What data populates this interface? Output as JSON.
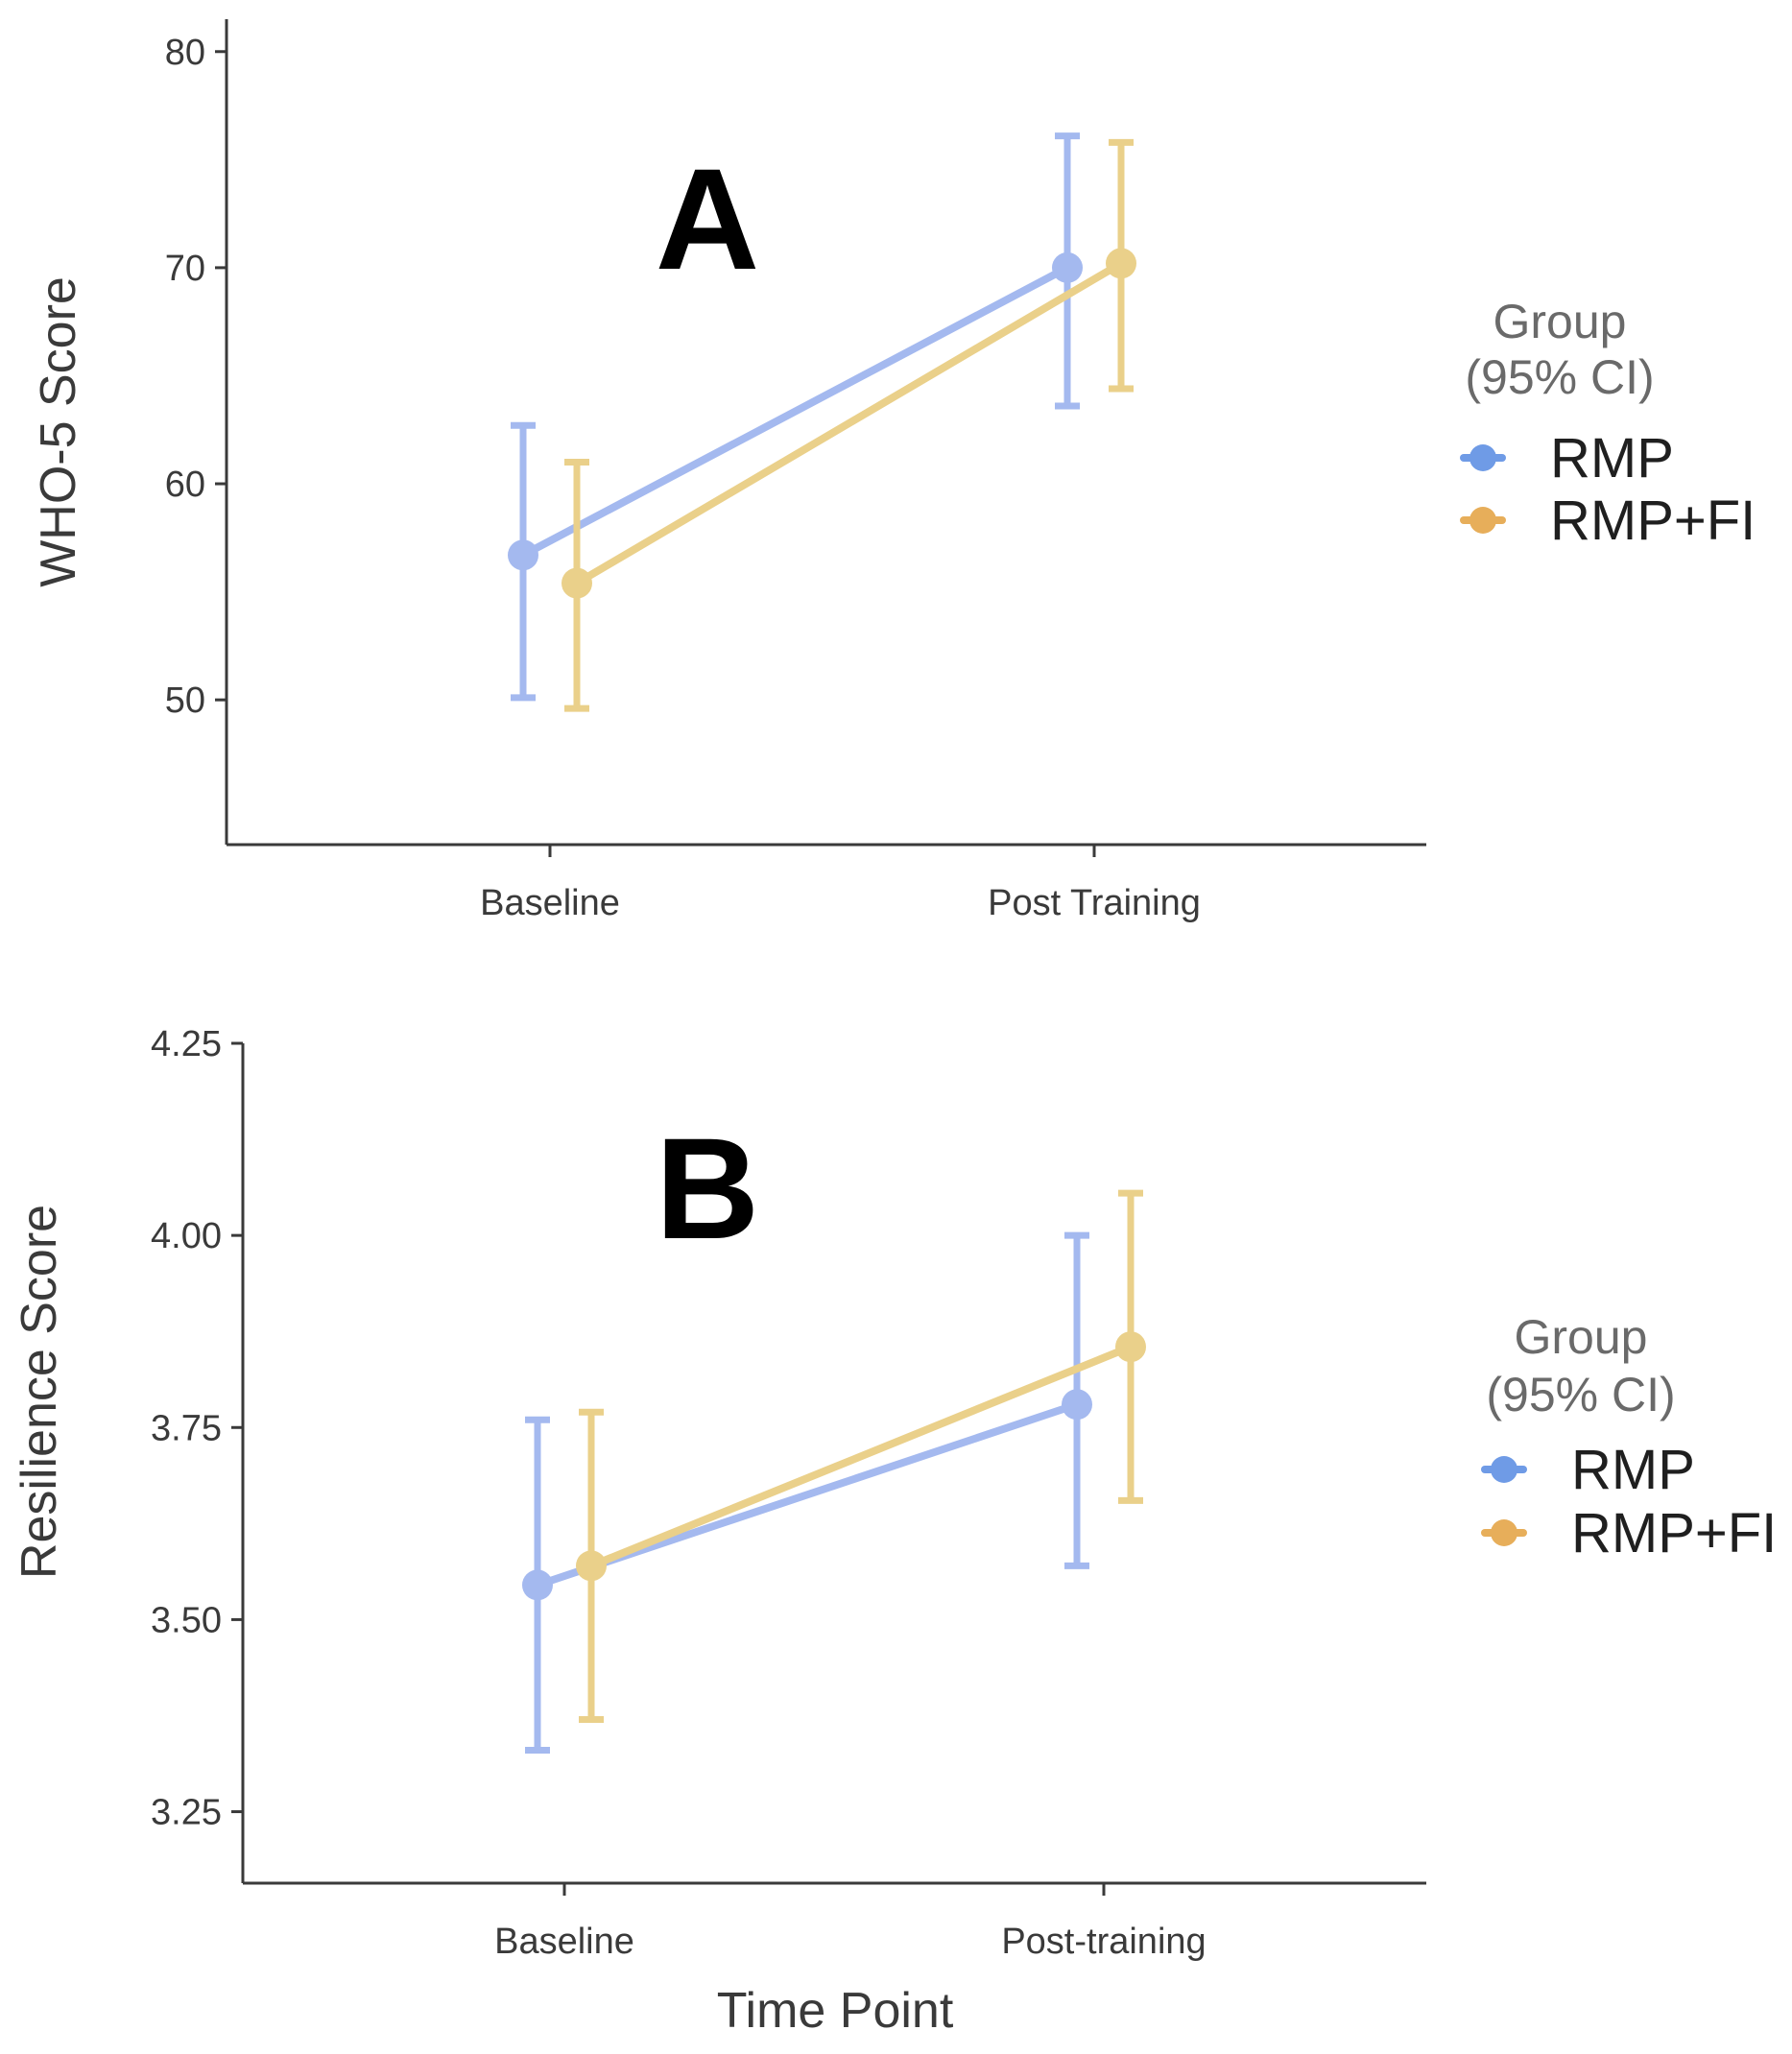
{
  "colors": {
    "rmp": "#a4b9ef",
    "rmp_fi": "#ead08a",
    "rmp_legend": "#6f9be6",
    "rmp_fi_legend": "#e7ae5a",
    "axis": "#3a3a3a"
  },
  "chart_data": [
    {
      "type": "line",
      "panel_label": "A",
      "title": "",
      "xlabel": "",
      "ylabel": "WHO-5 Score",
      "categories": [
        "Baseline",
        "Post Training"
      ],
      "ylim": [
        43.3,
        81.5
      ],
      "yticks": [
        "80",
        "70",
        "60",
        "50"
      ],
      "ytick_values": [
        80,
        70,
        60,
        50
      ],
      "legend_title": [
        "Group",
        "(95% CI)"
      ],
      "series": [
        {
          "name": "RMP",
          "values": [
            56.7,
            70.0
          ],
          "ci_low": [
            50.1,
            63.6
          ],
          "ci_high": [
            62.7,
            76.1
          ]
        },
        {
          "name": "RMP+FI",
          "values": [
            55.4,
            70.2
          ],
          "ci_low": [
            49.6,
            64.4
          ],
          "ci_high": [
            61.0,
            75.8
          ]
        }
      ]
    },
    {
      "type": "line",
      "panel_label": "B",
      "title": "",
      "xlabel": "Time Point",
      "ylabel": "Resilience Score",
      "categories": [
        "Baseline",
        "Post-training"
      ],
      "ylim": [
        3.157,
        4.25
      ],
      "yticks": [
        "4.25",
        "4.00",
        "3.75",
        "3.50",
        "3.25"
      ],
      "ytick_values": [
        4.25,
        4.0,
        3.75,
        3.5,
        3.25
      ],
      "legend_title": [
        "Group",
        "(95% CI)"
      ],
      "series": [
        {
          "name": "RMP",
          "values": [
            3.545,
            3.78
          ],
          "ci_low": [
            3.33,
            3.57
          ],
          "ci_high": [
            3.76,
            4.0
          ]
        },
        {
          "name": "RMP+FI",
          "values": [
            3.57,
            3.855
          ],
          "ci_low": [
            3.37,
            3.655
          ],
          "ci_high": [
            3.77,
            4.055
          ]
        }
      ]
    }
  ]
}
